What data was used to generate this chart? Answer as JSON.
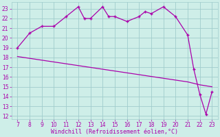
{
  "xlabel": "Windchill (Refroidissement éolien,°C)",
  "xlim": [
    6.5,
    23.5
  ],
  "ylim": [
    11.7,
    23.7
  ],
  "xticks": [
    7,
    8,
    9,
    10,
    11,
    12,
    13,
    14,
    15,
    16,
    17,
    18,
    19,
    20,
    21,
    22,
    23
  ],
  "yticks": [
    12,
    13,
    14,
    15,
    16,
    17,
    18,
    19,
    20,
    21,
    22,
    23
  ],
  "line1_x": [
    7,
    8,
    9,
    10,
    11,
    12,
    12.5,
    13,
    14,
    14.5,
    15,
    16,
    17,
    17.5,
    18,
    19,
    20,
    21,
    21.5,
    22,
    22.5,
    23
  ],
  "line1_y": [
    19,
    20.5,
    21.2,
    21.2,
    22.2,
    23.2,
    22.0,
    22.0,
    23.2,
    22.2,
    22.2,
    21.7,
    22.2,
    22.7,
    22.5,
    23.2,
    22.2,
    20.3,
    16.8,
    14.2,
    12.2,
    14.5
  ],
  "line2_x": [
    7,
    21,
    22,
    23
  ],
  "line2_y": [
    18.1,
    15.5,
    15.2,
    15.0
  ],
  "line_color": "#aa00aa",
  "bg_color": "#ceeee8",
  "grid_color": "#a0cccc",
  "tick_color": "#aa00aa",
  "xlabel_fontsize": 6.0,
  "tick_fontsize": 5.5
}
